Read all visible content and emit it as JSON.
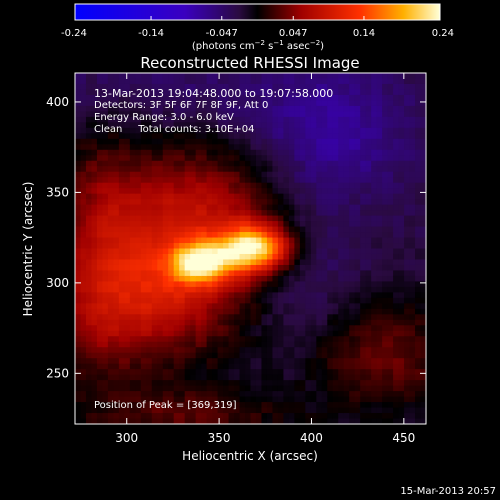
{
  "chart_data": {
    "type": "heatmap",
    "title": "Reconstructed RHESSI Image",
    "xlabel": "Heliocentric X (arcsec)",
    "ylabel": "Heliocentric Y (arcsec)",
    "xlim": [
      272,
      462
    ],
    "ylim": [
      222,
      416
    ],
    "x_ticks": [
      300,
      350,
      400,
      450
    ],
    "y_ticks": [
      250,
      300,
      350,
      400
    ],
    "colorbar": {
      "min": -0.24,
      "max": 0.24,
      "tick_values": [
        -0.24,
        -0.14,
        -0.047,
        0.047,
        0.14,
        0.24
      ],
      "tick_labels": [
        "-0.24",
        "-0.14",
        "-0.047",
        "0.047",
        "0.14",
        "0.24"
      ],
      "label": "(photons cm-2 s-1 asec-2)"
    },
    "annotations": [
      "13-Mar-2013 19:04:48.000 to 19:07:58.000",
      "Detectors: 3F 5F 6F 7F 8F 9F, Att 0",
      "Energy Range: 3.0 - 6.0 keV",
      "Clean     Total counts: 3.10E+04"
    ],
    "peak_label": "Position of Peak = [369,319]",
    "peak": [
      369,
      319
    ],
    "peak_value": 0.24,
    "features": [
      {
        "x": 369,
        "y": 319,
        "sx": 13,
        "sy": 9,
        "amp": 0.21
      },
      {
        "x": 340,
        "y": 311,
        "sx": 11,
        "sy": 8,
        "amp": 0.17
      },
      {
        "x": 335,
        "y": 332,
        "sx": 36,
        "sy": 30,
        "amp": 0.11
      },
      {
        "x": 315,
        "y": 300,
        "sx": 28,
        "sy": 18,
        "amp": 0.05
      },
      {
        "x": 300,
        "y": 275,
        "sx": 40,
        "sy": 22,
        "amp": 0.06
      },
      {
        "x": 285,
        "y": 330,
        "sx": 16,
        "sy": 40,
        "amp": 0.05
      },
      {
        "x": 440,
        "y": 260,
        "sx": 30,
        "sy": 22,
        "amp": 0.06
      },
      {
        "x": 330,
        "y": 226,
        "sx": 45,
        "sy": 12,
        "amp": 0.05
      },
      {
        "x": 410,
        "y": 380,
        "sx": 30,
        "sy": 24,
        "amp": -0.05
      },
      {
        "x": 330,
        "y": 410,
        "sx": 70,
        "sy": 18,
        "amp": -0.02
      },
      {
        "x": 395,
        "y": 305,
        "sx": 20,
        "sy": 28,
        "amp": -0.03
      }
    ],
    "background": -0.025
  },
  "footer": {
    "date": "15-Mar-2013 20:57"
  }
}
